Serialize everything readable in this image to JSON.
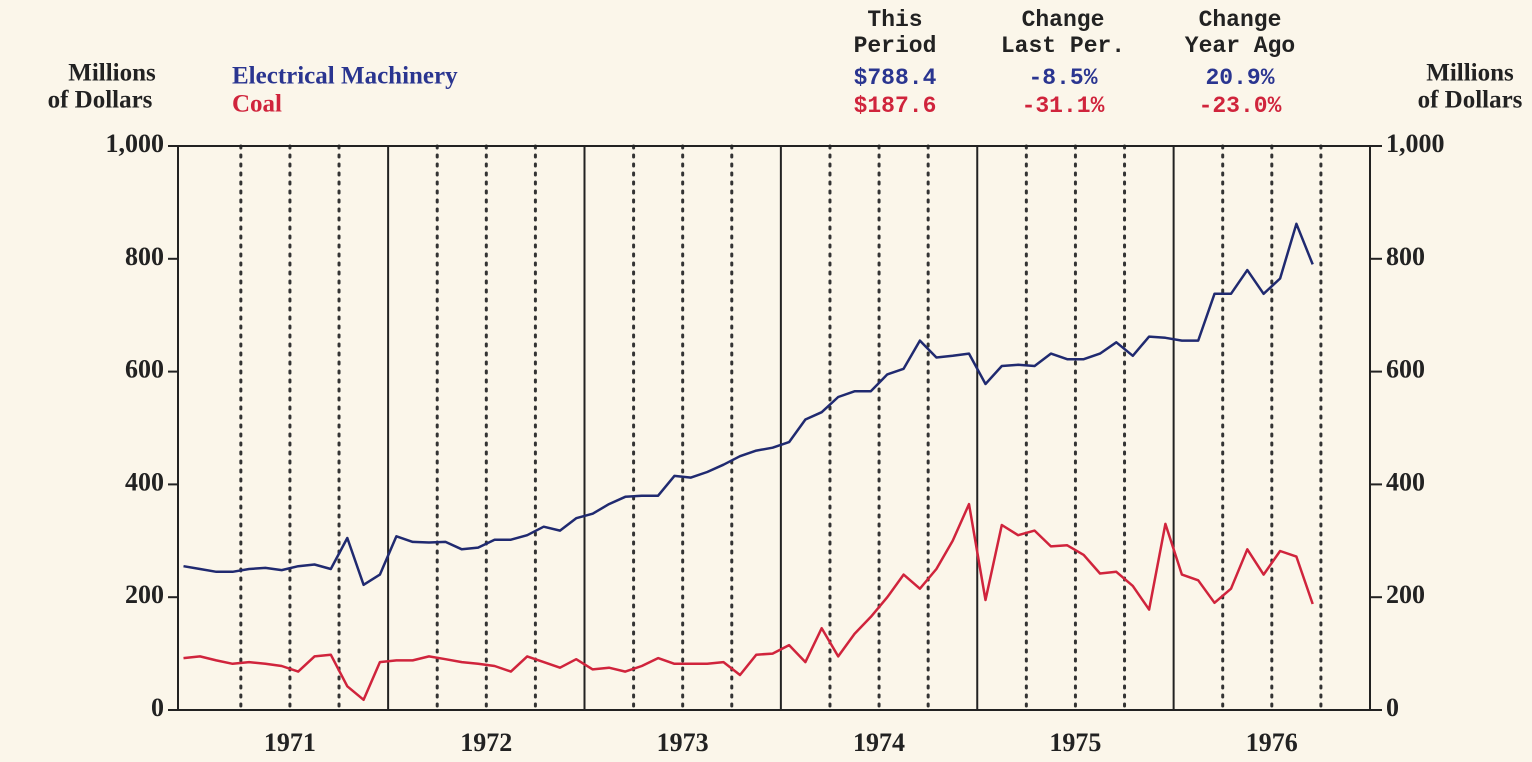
{
  "chart_data": {
    "type": "line",
    "ylabel": [
      "Millions",
      "of Dollars"
    ],
    "y2label": [
      "Millions",
      "of Dollars"
    ],
    "column_headers": [
      [
        "This",
        "Period"
      ],
      [
        "Change",
        "Last Per."
      ],
      [
        "Change",
        "Year Ago"
      ]
    ],
    "x": [
      1970.958,
      1971.042,
      1971.125,
      1971.208,
      1971.292,
      1971.375,
      1971.458,
      1971.542,
      1971.625,
      1971.708,
      1971.792,
      1971.875,
      1971.958,
      1972.042,
      1972.125,
      1972.208,
      1972.292,
      1972.375,
      1972.458,
      1972.542,
      1972.625,
      1972.708,
      1972.792,
      1972.875,
      1972.958,
      1973.042,
      1973.125,
      1973.208,
      1973.292,
      1973.375,
      1973.458,
      1973.542,
      1973.625,
      1973.708,
      1973.792,
      1973.875,
      1973.958,
      1974.042,
      1974.125,
      1974.208,
      1974.292,
      1974.375,
      1974.458,
      1974.542,
      1974.625,
      1974.708,
      1974.792,
      1974.875,
      1974.958,
      1975.042,
      1975.125,
      1975.208,
      1975.292,
      1975.375,
      1975.458,
      1975.542,
      1975.625,
      1975.708,
      1975.792,
      1975.875,
      1975.958,
      1976.042,
      1976.125,
      1976.208,
      1976.292,
      1976.375,
      1976.458,
      1976.542,
      1976.625,
      1976.708
    ],
    "series": [
      {
        "name": "Electrical Machinery",
        "color": "#202a70",
        "label_color": "#2a3590",
        "stats": [
          "$788.4",
          "-8.5%",
          "20.9%"
        ],
        "values": [
          255,
          250,
          245,
          245,
          250,
          252,
          248,
          255,
          258,
          250,
          305,
          222,
          240,
          308,
          298,
          297,
          298,
          285,
          288,
          302,
          302,
          310,
          325,
          318,
          340,
          348,
          365,
          378,
          380,
          380,
          415,
          412,
          422,
          435,
          450,
          460,
          465,
          475,
          515,
          528,
          555,
          565,
          565,
          595,
          605,
          655,
          625,
          628,
          632,
          578,
          610,
          612,
          610,
          632,
          622,
          622,
          632,
          652,
          628,
          662,
          660,
          655,
          655,
          738,
          738,
          780,
          738,
          765,
          862,
          790
        ]
      },
      {
        "name": "Coal",
        "color": "#d0243c",
        "label_color": "#d0243c",
        "stats": [
          "$187.6",
          "-31.1%",
          "-23.0%"
        ],
        "values": [
          92,
          95,
          88,
          82,
          85,
          82,
          78,
          68,
          95,
          98,
          42,
          18,
          85,
          88,
          88,
          95,
          90,
          85,
          82,
          78,
          68,
          95,
          85,
          75,
          90,
          72,
          75,
          68,
          78,
          92,
          82,
          82,
          82,
          85,
          62,
          98,
          100,
          115,
          85,
          145,
          95,
          135,
          165,
          200,
          240,
          215,
          250,
          300,
          365,
          195,
          328,
          310,
          318,
          290,
          292,
          275,
          242,
          245,
          220,
          178,
          330,
          240,
          230,
          190,
          215,
          285,
          240,
          282,
          272,
          188
        ]
      }
    ],
    "xlim": [
      1970.93,
      1977.0
    ],
    "xticks": [
      {
        "value": 1971.5,
        "label": "1971"
      },
      {
        "value": 1972.5,
        "label": "1972"
      },
      {
        "value": 1973.5,
        "label": "1973"
      },
      {
        "value": 1974.5,
        "label": "1974"
      },
      {
        "value": 1975.5,
        "label": "1975"
      },
      {
        "value": 1976.5,
        "label": "1976"
      }
    ],
    "xgrid_major": [
      1972,
      1973,
      1974,
      1975,
      1976
    ],
    "xgrid_minor": [
      1971.25,
      1971.5,
      1971.75,
      1972.25,
      1972.5,
      1972.75,
      1973.25,
      1973.5,
      1973.75,
      1974.25,
      1974.5,
      1974.75,
      1975.25,
      1975.5,
      1975.75,
      1976.25,
      1976.5,
      1976.75
    ],
    "ylim": [
      0,
      1000
    ],
    "yticks": [
      0,
      200,
      400,
      600,
      800,
      {
        "value": 1000,
        "label": "1,000"
      }
    ],
    "y2lim": [
      0,
      1000
    ],
    "y2ticks": [
      0,
      200,
      400,
      600,
      800,
      {
        "value": 1000,
        "label": "1,000"
      }
    ]
  }
}
